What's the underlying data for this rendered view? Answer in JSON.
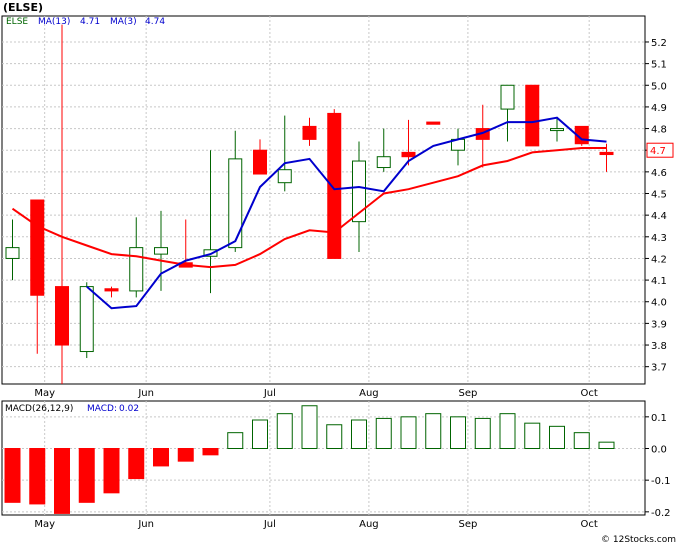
{
  "title": "(ELSE)",
  "watermark": "© 12Stocks.com",
  "price_legend": {
    "symbol": "ELSE",
    "ma_long": "MA(13)",
    "ma_long_value": "4.71",
    "ma_short": "MA(3)",
    "ma_short_value": "4.74"
  },
  "macd_legend": {
    "name": "MACD(26,12,9)",
    "label": "MACD:",
    "value": "0.02"
  },
  "last_price": "4.7",
  "colors": {
    "up": "#006400",
    "down": "#ff0000",
    "ma_long": "#ff0000",
    "ma_short": "#0000cd",
    "grid": "#c8c8c8",
    "macd": "#006400",
    "price_box": "#ff0000"
  },
  "chart_data": [
    {
      "type": "candlestick",
      "title": "(ELSE)",
      "xlabel": "",
      "ylabel": "",
      "ylim": [
        3.62,
        5.32
      ],
      "yticks": [
        3.7,
        3.8,
        3.9,
        4.0,
        4.1,
        4.2,
        4.3,
        4.4,
        4.5,
        4.6,
        4.7,
        4.8,
        4.9,
        5.0,
        5.1,
        5.2
      ],
      "month_labels": [
        "May",
        "Jun",
        "Jul",
        "Aug",
        "Sep",
        "Oct"
      ],
      "month_index": [
        1.3,
        5.4,
        10.4,
        14.4,
        18.4,
        23.3
      ],
      "grid": true,
      "candles": [
        {
          "o": 4.2,
          "h": 4.38,
          "l": 4.1,
          "c": 4.25
        },
        {
          "o": 4.47,
          "h": 4.47,
          "l": 3.76,
          "c": 4.03
        },
        {
          "o": 4.07,
          "h": 5.28,
          "l": 3.62,
          "c": 3.8
        },
        {
          "o": 3.77,
          "h": 4.09,
          "l": 3.74,
          "c": 4.07
        },
        {
          "o": 4.06,
          "h": 4.07,
          "l": 4.02,
          "c": 4.05
        },
        {
          "o": 4.05,
          "h": 4.39,
          "l": 4.02,
          "c": 4.25
        },
        {
          "o": 4.22,
          "h": 4.42,
          "l": 4.05,
          "c": 4.25
        },
        {
          "o": 4.18,
          "h": 4.38,
          "l": 4.16,
          "c": 4.16
        },
        {
          "o": 4.21,
          "h": 4.7,
          "l": 4.04,
          "c": 4.24
        },
        {
          "o": 4.25,
          "h": 4.79,
          "l": 4.23,
          "c": 4.66
        },
        {
          "o": 4.7,
          "h": 4.75,
          "l": 4.59,
          "c": 4.59
        },
        {
          "o": 4.55,
          "h": 4.86,
          "l": 4.51,
          "c": 4.61
        },
        {
          "o": 4.81,
          "h": 4.85,
          "l": 4.72,
          "c": 4.75
        },
        {
          "o": 4.87,
          "h": 4.89,
          "l": 4.2,
          "c": 4.2
        },
        {
          "o": 4.37,
          "h": 4.74,
          "l": 4.23,
          "c": 4.65
        },
        {
          "o": 4.62,
          "h": 4.8,
          "l": 4.6,
          "c": 4.67
        },
        {
          "o": 4.69,
          "h": 4.84,
          "l": 4.63,
          "c": 4.67
        },
        {
          "o": 4.83,
          "h": 4.83,
          "l": 4.82,
          "c": 4.82
        },
        {
          "o": 4.7,
          "h": 4.8,
          "l": 4.63,
          "c": 4.75
        },
        {
          "o": 4.8,
          "h": 4.91,
          "l": 4.62,
          "c": 4.75
        },
        {
          "o": 4.89,
          "h": 5.0,
          "l": 4.74,
          "c": 5.0
        },
        {
          "o": 5.0,
          "h": 5.0,
          "l": 4.72,
          "c": 4.72
        },
        {
          "o": 4.8,
          "h": 4.85,
          "l": 4.74,
          "c": 4.8
        },
        {
          "o": 4.81,
          "h": 4.81,
          "l": 4.72,
          "c": 4.73
        },
        {
          "o": 4.69,
          "h": 4.73,
          "l": 4.6,
          "c": 4.68
        }
      ],
      "series": [
        {
          "name": "MA(13)",
          "values": [
            4.43,
            4.35,
            4.3,
            4.26,
            4.22,
            4.21,
            4.19,
            4.17,
            4.16,
            4.17,
            4.22,
            4.29,
            4.33,
            4.32,
            4.41,
            4.5,
            4.52,
            4.55,
            4.58,
            4.63,
            4.65,
            4.69,
            4.7,
            4.71,
            4.71
          ]
        },
        {
          "name": "MA(3)",
          "values": [
            null,
            null,
            null,
            4.07,
            3.97,
            3.98,
            4.13,
            4.19,
            4.22,
            4.28,
            4.53,
            4.64,
            4.66,
            4.52,
            4.53,
            4.51,
            4.65,
            4.72,
            4.75,
            4.78,
            4.83,
            4.83,
            4.85,
            4.75,
            4.74
          ]
        }
      ]
    },
    {
      "type": "bar",
      "title": "MACD(26,12,9)",
      "xlabel": "",
      "ylabel": "",
      "ylim": [
        -0.21,
        0.15
      ],
      "yticks": [
        -0.2,
        -0.1,
        0.0,
        0.1
      ],
      "month_labels": [
        "May",
        "Jun",
        "Jul",
        "Aug",
        "Sep",
        "Oct"
      ],
      "grid": true,
      "values": [
        -0.17,
        -0.175,
        -0.205,
        -0.17,
        -0.14,
        -0.095,
        -0.055,
        -0.04,
        -0.02,
        0.05,
        0.09,
        0.11,
        0.135,
        0.075,
        0.09,
        0.095,
        0.1,
        0.11,
        0.1,
        0.095,
        0.11,
        0.08,
        0.07,
        0.05,
        0.02
      ]
    }
  ]
}
